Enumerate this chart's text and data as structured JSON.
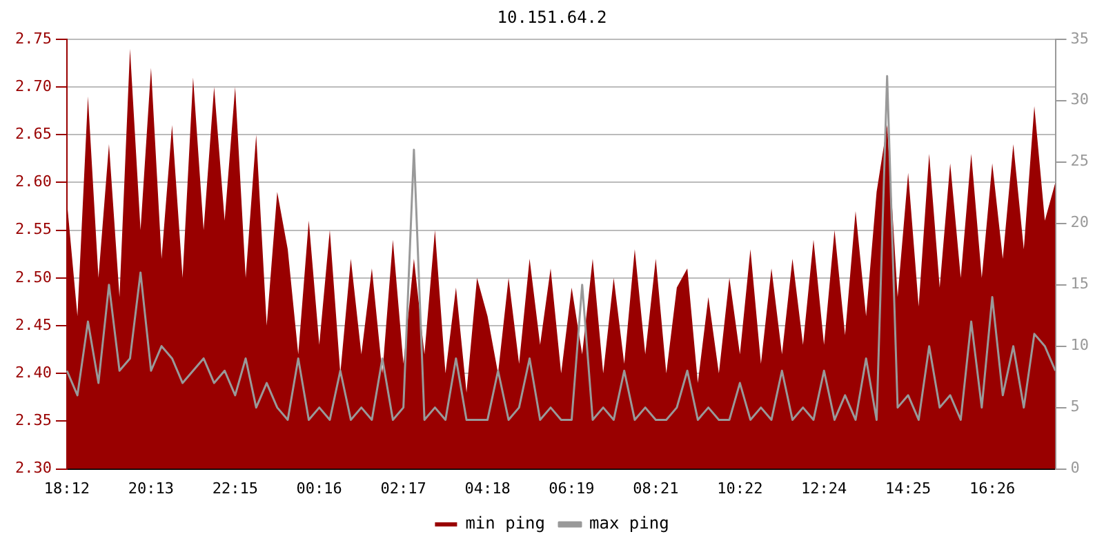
{
  "chart_data": {
    "type": "area",
    "title": "10.151.64.2",
    "categories": [
      "18:12",
      null,
      null,
      null,
      null,
      null,
      null,
      null,
      "20:13",
      null,
      null,
      null,
      null,
      null,
      null,
      null,
      "22:15",
      null,
      null,
      null,
      null,
      null,
      null,
      null,
      "00:16",
      null,
      null,
      null,
      null,
      null,
      null,
      null,
      "02:17",
      null,
      null,
      null,
      null,
      null,
      null,
      null,
      "04:18",
      null,
      null,
      null,
      null,
      null,
      null,
      null,
      "06:19",
      null,
      null,
      null,
      null,
      null,
      null,
      null,
      "08:21",
      null,
      null,
      null,
      null,
      null,
      null,
      null,
      "10:22",
      null,
      null,
      null,
      null,
      null,
      null,
      null,
      "12:24",
      null,
      null,
      null,
      null,
      null,
      null,
      null,
      "14:25",
      null,
      null,
      null,
      null,
      null,
      null,
      null,
      "16:26",
      null,
      null,
      null,
      null,
      null,
      null
    ],
    "series": [
      {
        "name": "min ping",
        "color": "#990000",
        "values": [
          2.58,
          2.46,
          2.69,
          2.5,
          2.64,
          2.48,
          2.74,
          2.55,
          2.72,
          2.52,
          2.66,
          2.5,
          2.71,
          2.55,
          2.7,
          2.56,
          2.7,
          2.5,
          2.65,
          2.45,
          2.59,
          2.53,
          2.42,
          2.56,
          2.43,
          2.55,
          2.4,
          2.52,
          2.42,
          2.51,
          2.4,
          2.54,
          2.41,
          2.52,
          2.42,
          2.55,
          2.4,
          2.49,
          2.38,
          2.5,
          2.46,
          2.4,
          2.5,
          2.41,
          2.52,
          2.43,
          2.51,
          2.4,
          2.49,
          2.42,
          2.52,
          2.4,
          2.5,
          2.41,
          2.53,
          2.42,
          2.52,
          2.4,
          2.49,
          2.51,
          2.39,
          2.48,
          2.4,
          2.5,
          2.42,
          2.53,
          2.41,
          2.51,
          2.42,
          2.52,
          2.43,
          2.54,
          2.43,
          2.55,
          2.44,
          2.57,
          2.46,
          2.59,
          2.66,
          2.48,
          2.61,
          2.47,
          2.63,
          2.49,
          2.62,
          2.5,
          2.63,
          2.5,
          2.62,
          2.52,
          2.64,
          2.53,
          2.68,
          2.56,
          2.6
        ]
      },
      {
        "name": "max ping",
        "type": "line",
        "axis": "y2",
        "color": "#999999",
        "values": [
          8,
          6,
          12,
          7,
          15,
          8,
          9,
          16,
          8,
          10,
          9,
          7,
          8,
          9,
          7,
          8,
          6,
          9,
          5,
          7,
          5,
          4,
          9,
          4,
          5,
          4,
          8,
          4,
          5,
          4,
          9,
          4,
          5,
          26,
          4,
          5,
          4,
          9,
          4,
          4,
          4,
          8,
          4,
          5,
          9,
          4,
          5,
          4,
          4,
          15,
          4,
          5,
          4,
          8,
          4,
          5,
          4,
          4,
          5,
          8,
          4,
          5,
          4,
          4,
          7,
          4,
          5,
          4,
          8,
          4,
          5,
          4,
          8,
          4,
          6,
          4,
          9,
          4,
          32,
          5,
          6,
          4,
          10,
          5,
          6,
          4,
          12,
          5,
          14,
          6,
          10,
          5,
          11,
          10,
          8
        ]
      }
    ],
    "ylim": [
      2.3,
      2.75
    ],
    "yticks": [
      {
        "value": 2.3,
        "label": "2.30"
      },
      {
        "value": 2.35,
        "label": "2.35"
      },
      {
        "value": 2.4,
        "label": "2.40"
      },
      {
        "value": 2.45,
        "label": "2.45"
      },
      {
        "value": 2.5,
        "label": "2.50"
      },
      {
        "value": 2.55,
        "label": "2.55"
      },
      {
        "value": 2.6,
        "label": "2.60"
      },
      {
        "value": 2.65,
        "label": "2.65"
      },
      {
        "value": 2.7,
        "label": "2.70"
      },
      {
        "value": 2.75,
        "label": "2.75"
      }
    ],
    "y2lim": [
      0,
      35
    ],
    "y2ticks": [
      0,
      5,
      10,
      15,
      20,
      25,
      30,
      35
    ],
    "grid": "y",
    "legend": "bottom",
    "marker": "none",
    "line_style": "solid"
  }
}
